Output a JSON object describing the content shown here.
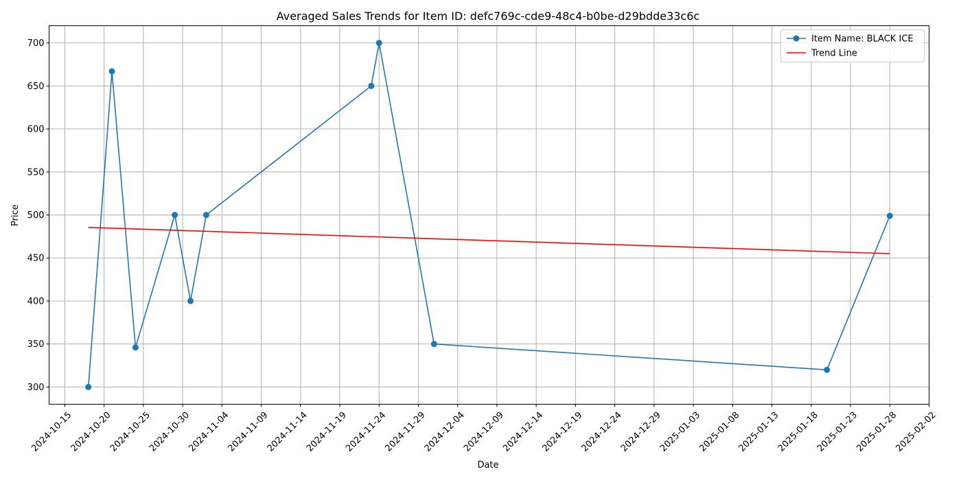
{
  "chart_data": {
    "type": "line",
    "title": "Averaged Sales Trends for Item ID: defc769c-cde9-48c4-b0be-d29bdde33c6c",
    "xlabel": "Date",
    "ylabel": "Price",
    "grid": true,
    "legend_position": "top-right",
    "xlim": [
      "2024-10-13",
      "2025-02-02"
    ],
    "ylim": [
      280,
      720
    ],
    "x_ticks": [
      "2024-10-15",
      "2024-10-20",
      "2024-10-25",
      "2024-10-30",
      "2024-11-04",
      "2024-11-09",
      "2024-11-14",
      "2024-11-19",
      "2024-11-24",
      "2024-11-29",
      "2024-12-04",
      "2024-12-09",
      "2024-12-14",
      "2024-12-19",
      "2024-12-24",
      "2024-12-29",
      "2025-01-03",
      "2025-01-08",
      "2025-01-13",
      "2025-01-18",
      "2025-01-23",
      "2025-01-28",
      "2025-02-02"
    ],
    "y_ticks": [
      300,
      350,
      400,
      450,
      500,
      550,
      600,
      650,
      700
    ],
    "series": [
      {
        "name": "Item Name: BLACK ICE",
        "color": "#1f77b4",
        "marker": "circle",
        "points": [
          {
            "x": "2024-10-18",
            "y": 300
          },
          {
            "x": "2024-10-21",
            "y": 667
          },
          {
            "x": "2024-10-24",
            "y": 346
          },
          {
            "x": "2024-10-29",
            "y": 500
          },
          {
            "x": "2024-10-31",
            "y": 400
          },
          {
            "x": "2024-11-02",
            "y": 500
          },
          {
            "x": "2024-11-23",
            "y": 650
          },
          {
            "x": "2024-11-24",
            "y": 700
          },
          {
            "x": "2024-12-01",
            "y": 350
          },
          {
            "x": "2025-01-20",
            "y": 320
          },
          {
            "x": "2025-01-28",
            "y": 499
          }
        ]
      },
      {
        "name": "Trend Line",
        "color": "#ff0000",
        "marker": "none",
        "points": [
          {
            "x": "2024-10-18",
            "y": 485.5
          },
          {
            "x": "2025-01-28",
            "y": 455
          }
        ]
      }
    ]
  }
}
